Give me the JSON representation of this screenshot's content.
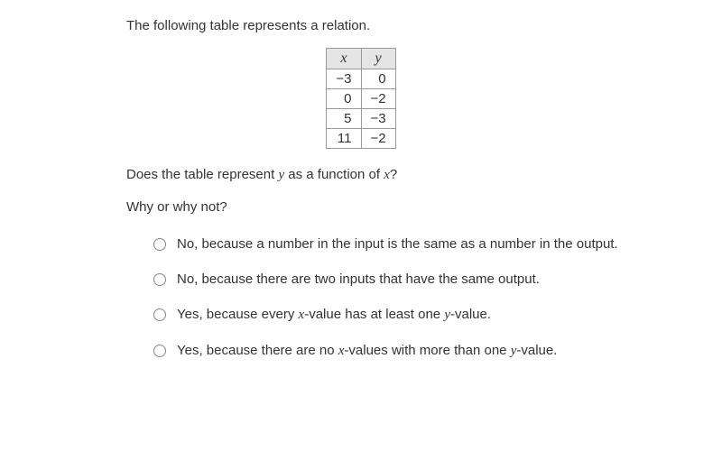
{
  "intro": "The following table represents a relation.",
  "table": {
    "header_x": "x",
    "header_y": "y",
    "rows": [
      {
        "x": "−3",
        "y": "0"
      },
      {
        "x": "0",
        "y": "−2"
      },
      {
        "x": "5",
        "y": "−3"
      },
      {
        "x": "11",
        "y": "−2"
      }
    ]
  },
  "q1_pre": "Does the table represent ",
  "q1_var": "y",
  "q1_mid": " as a function of ",
  "q1_var2": "x",
  "q1_post": "?",
  "q2": "Why or why not?",
  "options": [
    {
      "text_pre": "No, because a number in the input is the same as a number in the output.",
      "has_vars": false
    },
    {
      "text_pre": "No, because there are two inputs that have the same output.",
      "has_vars": false
    },
    {
      "text_pre": "Yes, because every ",
      "v1": "x",
      "mid": "-value has at least one ",
      "v2": "y",
      "post": "-value.",
      "has_vars": true
    },
    {
      "text_pre": "Yes, because there are no ",
      "v1": "x",
      "mid": "-values with more than one ",
      "v2": "y",
      "post": "-value.",
      "has_vars": true
    }
  ]
}
